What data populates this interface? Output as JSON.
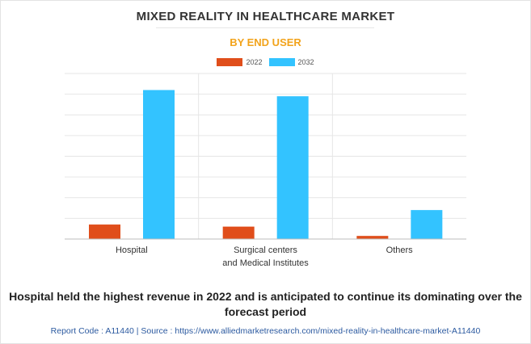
{
  "chart_data": {
    "type": "bar",
    "title": "MIXED REALITY IN HEALTHCARE MARKET",
    "subtitle": "BY END USER",
    "categories": [
      "Hospital",
      "Surgical centers and Medical Institutes",
      "Others"
    ],
    "category_lines": [
      [
        "Hospital"
      ],
      [
        "Surgical centers",
        "and Medical Institutes"
      ],
      [
        "Others"
      ]
    ],
    "series": [
      {
        "name": "2022",
        "color": "#e04e1b",
        "values": [
          0.7,
          0.6,
          0.15
        ]
      },
      {
        "name": "2032",
        "color": "#33c3ff",
        "values": [
          7.2,
          6.9,
          1.4
        ]
      }
    ],
    "ylim": [
      0,
      8
    ],
    "ytick_count": 8,
    "grid": true,
    "legend_position": "top-center",
    "xlabel": "",
    "ylabel": ""
  },
  "caption": "Hospital held the highest revenue in 2022 and is anticipated to continue its dominating over the forecast period",
  "footer": "Report Code : A11440  |  Source : https://www.alliedmarketresearch.com/mixed-reality-in-healthcare-market-A11440"
}
